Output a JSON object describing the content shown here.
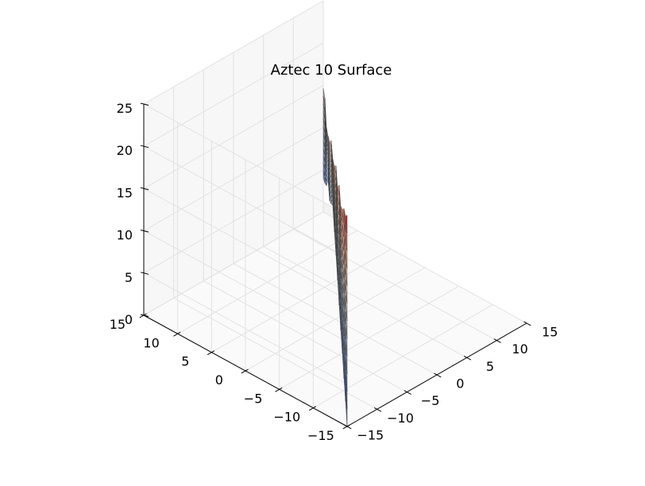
{
  "chart_data": {
    "type": "surface",
    "title": "Aztec 10 Surface",
    "xlabel": "",
    "ylabel": "",
    "zlabel": "",
    "colormap": "coolwarm",
    "colormap_stops": [
      "#3b4cc0",
      "#7396f5",
      "#b0cbfc",
      "#dddcdc",
      "#f6bfa6",
      "#ee8468",
      "#b40426"
    ],
    "pane_color": "#f2f2f2",
    "grid": true,
    "xlim": [
      -15,
      15
    ],
    "ylim": [
      -15,
      15
    ],
    "zlim": [
      0,
      25
    ],
    "x_ticks": [
      -15,
      -10,
      -5,
      0,
      5,
      10,
      15
    ],
    "y_ticks": [
      -15,
      -10,
      -5,
      0,
      5,
      10,
      15
    ],
    "z_ticks": [
      0,
      5,
      10,
      15,
      20,
      25
    ],
    "x_tick_labels": [
      "−15",
      "−10",
      "−5",
      "0",
      "5",
      "10",
      "15"
    ],
    "y_tick_labels": [
      "−15",
      "−10",
      "−5",
      "0",
      "5",
      "10",
      "15"
    ],
    "z_tick_labels": [
      "0",
      "5",
      "10",
      "15",
      "20",
      "25"
    ],
    "surface": {
      "description": "Vertical surface wall along x = y, from (-15,-15) to (15,15); lower edge height 0 at (-15,-15) rising toward the far end, top edge a noisy ridge.",
      "s": [
        -15,
        -13,
        -11,
        -9,
        -7,
        -5,
        -3,
        -1,
        1,
        3,
        5,
        7,
        9,
        11,
        13,
        15
      ],
      "z_top": [
        25.0,
        23.2,
        22.4,
        20.6,
        19.3,
        20.1,
        18.2,
        19.0,
        17.3,
        16.4,
        16.9,
        15.1,
        14.1,
        13.4,
        15.2,
        14.6
      ],
      "z_bottom": [
        0.0,
        1.3,
        2.3,
        3.6,
        4.6,
        5.9,
        7.2,
        8.4,
        9.5,
        10.9,
        9.4,
        8.1,
        8.8,
        6.5,
        5.1,
        4.0
      ]
    }
  }
}
